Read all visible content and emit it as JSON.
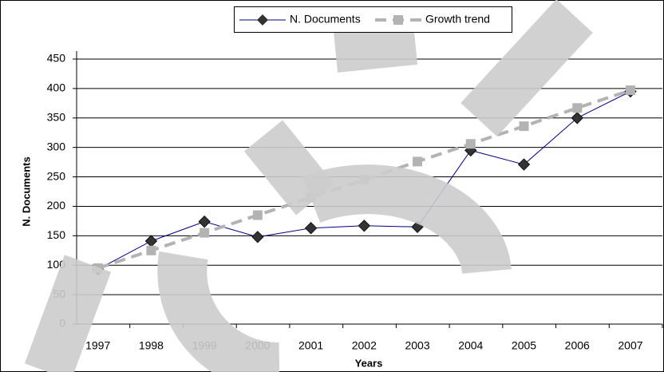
{
  "chart_data": {
    "type": "line",
    "x_label": "Years",
    "y_label": "N. Documents",
    "categories": [
      "1997",
      "1998",
      "1999",
      "2000",
      "2001",
      "2002",
      "2003",
      "2004",
      "2005",
      "2006",
      "2007"
    ],
    "series": [
      {
        "name": "N. Documents",
        "color": "#000080",
        "values": [
          93,
          141,
          174,
          148,
          163,
          167,
          165,
          295,
          271,
          350,
          395
        ]
      },
      {
        "name": "Growth trend",
        "color": "#b3b3b3",
        "values": [
          95,
          125,
          155,
          185,
          215,
          245,
          276,
          306,
          336,
          367,
          397
        ]
      }
    ],
    "ylim": [
      0,
      450
    ],
    "yticks": [
      0,
      50,
      100,
      150,
      200,
      250,
      300,
      350,
      400,
      450
    ],
    "grid": true,
    "legend": "top"
  }
}
